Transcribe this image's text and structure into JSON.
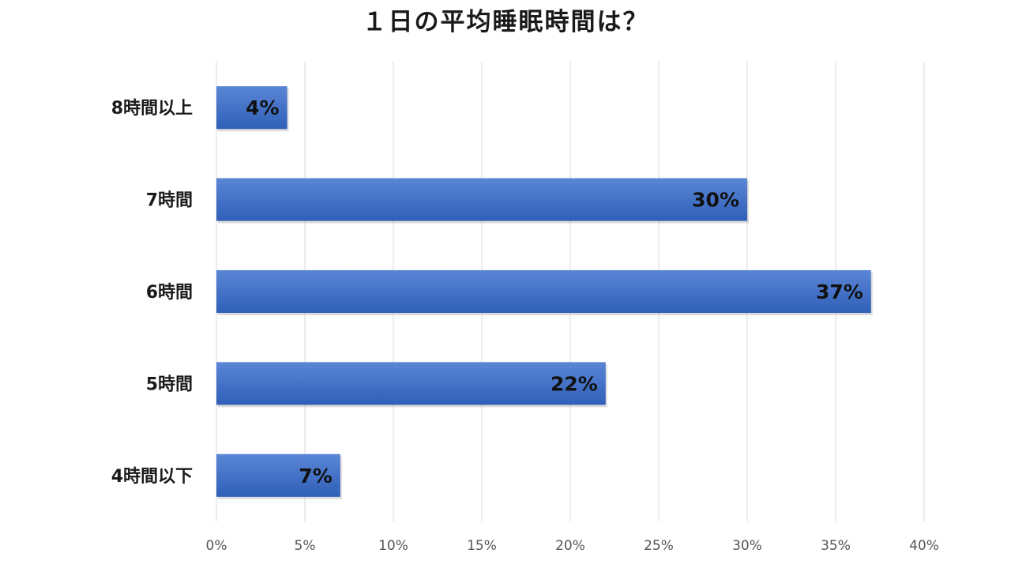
{
  "chart_data": {
    "type": "bar",
    "orientation": "horizontal",
    "title": "１日の平均睡眠時間は？",
    "categories": [
      "8時間以上",
      "7時間",
      "6時間",
      "5時間",
      "4時間以下"
    ],
    "values": [
      4,
      30,
      37,
      22,
      7
    ],
    "data_labels": [
      "4%",
      "30%",
      "37%",
      "22%",
      "7%"
    ],
    "xlim": [
      0,
      40
    ],
    "xticks": [
      0,
      5,
      10,
      15,
      20,
      25,
      30,
      35,
      40
    ],
    "xtick_labels": [
      "0%",
      "5%",
      "10%",
      "15%",
      "20%",
      "25%",
      "30%",
      "35%",
      "40%"
    ],
    "grid": "vertical",
    "legend": "none",
    "colors": {
      "bar_top": "#5b86d6",
      "bar_bottom": "#2f5fb8",
      "grid": "#d9d9d9"
    }
  }
}
